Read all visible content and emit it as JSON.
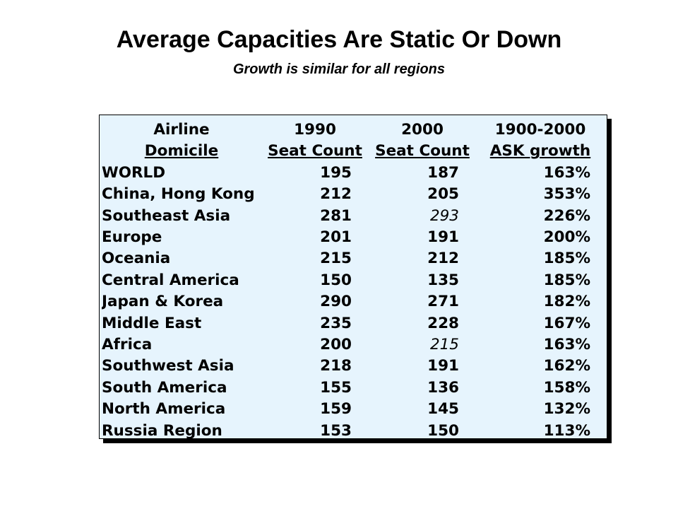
{
  "slide": {
    "title": "Average Capacities Are Static Or Down",
    "subtitle": "Growth is similar for all regions"
  },
  "table": {
    "header_top": [
      "Airline",
      "1990",
      "2000",
      "1900-2000"
    ],
    "header_bottom": [
      "Domicile",
      "Seat Count",
      "Seat Count",
      "ASK growth"
    ],
    "rows": [
      {
        "region": "WORLD",
        "seats_1990": "195",
        "seats_2000": "187",
        "ask_growth": "163%"
      },
      {
        "region": "China, Hong Kong",
        "seats_1990": "212",
        "seats_2000": "205",
        "ask_growth": "353%"
      },
      {
        "region": "Southeast Asia",
        "seats_1990": "281",
        "seats_2000": "293",
        "ask_growth": "226%",
        "seats_2000_style": "italic"
      },
      {
        "region": "Europe",
        "seats_1990": "201",
        "seats_2000": "191",
        "ask_growth": "200%"
      },
      {
        "region": "Oceania",
        "seats_1990": "215",
        "seats_2000": "212",
        "ask_growth": "185%"
      },
      {
        "region": "Central America",
        "seats_1990": "150",
        "seats_2000": "135",
        "ask_growth": "185%"
      },
      {
        "region": "Japan & Korea",
        "seats_1990": "290",
        "seats_2000": "271",
        "ask_growth": "182%"
      },
      {
        "region": "Middle East",
        "seats_1990": "235",
        "seats_2000": "228",
        "ask_growth": "167%"
      },
      {
        "region": "Africa",
        "seats_1990": "200",
        "seats_2000": "215",
        "ask_growth": "163%",
        "seats_2000_style": "italic"
      },
      {
        "region": "Southwest Asia",
        "seats_1990": "218",
        "seats_2000": "191",
        "ask_growth": "162%"
      },
      {
        "region": "South America",
        "seats_1990": "155",
        "seats_2000": "136",
        "ask_growth": "158%"
      },
      {
        "region": "North America",
        "seats_1990": "159",
        "seats_2000": "145",
        "ask_growth": "132%"
      },
      {
        "region": "Russia Region",
        "seats_1990": "153",
        "seats_2000": "150",
        "ask_growth": "113%"
      }
    ]
  },
  "colors": {
    "table_background": "#e6f4fd",
    "shadow": "#000000",
    "text": "#000000"
  }
}
